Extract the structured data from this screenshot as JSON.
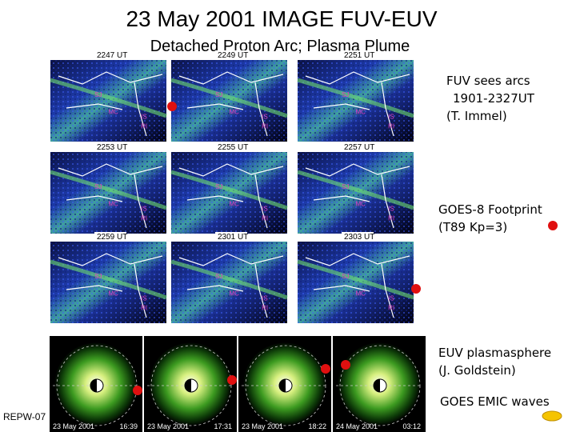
{
  "title": "23 May 2001 IMAGE FUV-EUV",
  "subtitle": "Detached Proton Arc; Plasma Plume",
  "fuv_panels": [
    {
      "time": "2247 UT"
    },
    {
      "time": "2249 UT"
    },
    {
      "time": "2251 UT"
    },
    {
      "time": "2253 UT"
    },
    {
      "time": "2255 UT"
    },
    {
      "time": "2257 UT"
    },
    {
      "time": "2259 UT"
    },
    {
      "time": "2301 UT"
    },
    {
      "time": "2303 UT"
    }
  ],
  "map_labels": [
    "SJ",
    "MC",
    "IS",
    "RI"
  ],
  "euv_panels": [
    {
      "date": "23 May 2001",
      "time": "16:39"
    },
    {
      "date": "23 May 2001",
      "time": "17:31"
    },
    {
      "date": "23 May 2001",
      "time": "18:22"
    },
    {
      "date": "24 May 2001",
      "time": "03:12"
    }
  ],
  "notes": [
    {
      "lines": [
        "FUV sees arcs",
        "1901-2327UT",
        "(T. Immel)"
      ]
    },
    {
      "lines": [
        "GOES-8 Footprint",
        "(T89 Kp=3)"
      ]
    },
    {
      "lines": [
        "EUV plasmasphere",
        "(J. Goldstein)"
      ]
    },
    {
      "lines": [
        "GOES EMIC waves"
      ]
    }
  ],
  "footer": "REPW-07"
}
